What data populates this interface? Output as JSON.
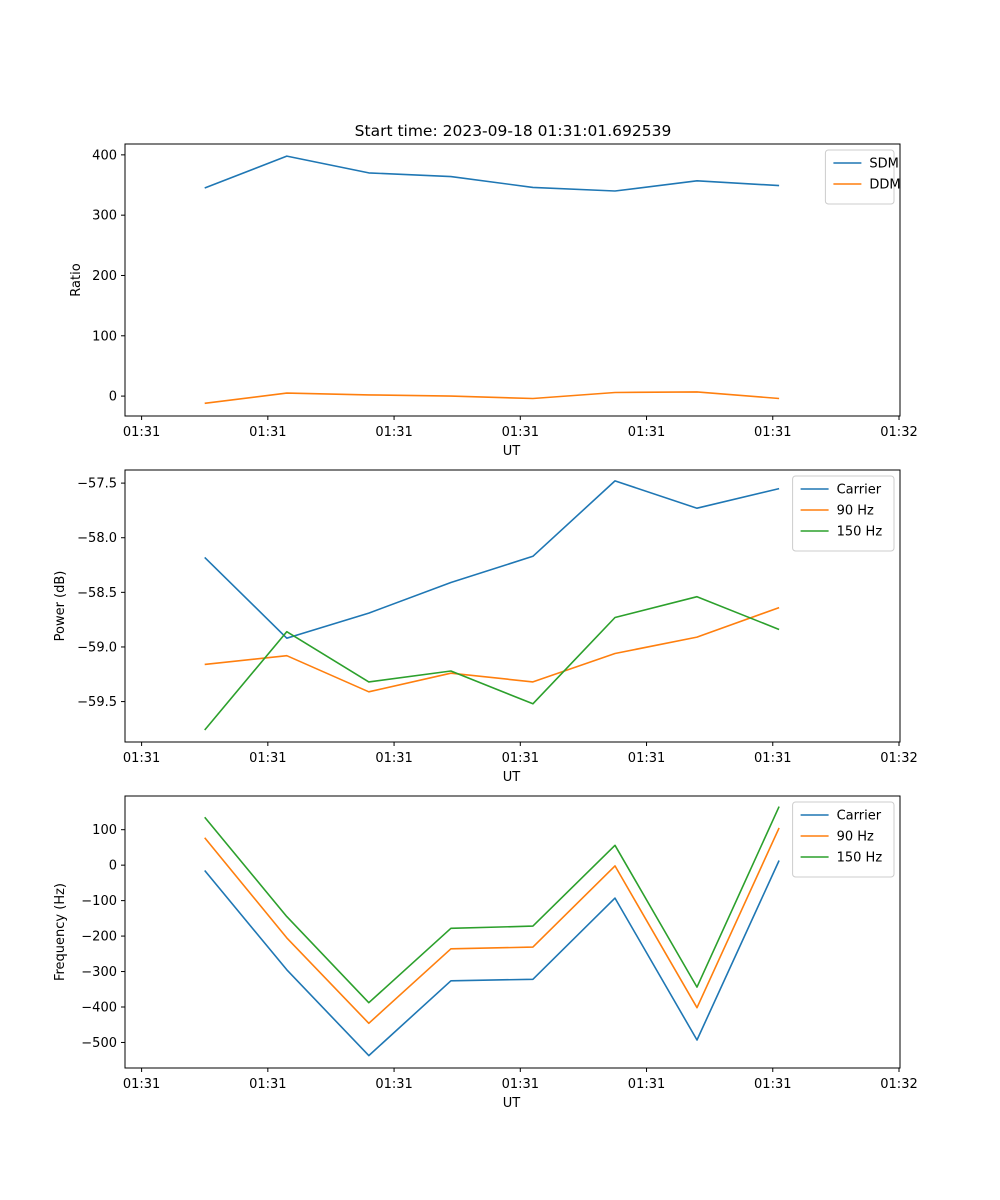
{
  "figure": {
    "title": "Start time: 2023-09-18 01:31:01.692539"
  },
  "chart_data": [
    {
      "type": "line",
      "title": "Start time: 2023-09-18 01:31:01.692539",
      "xlabel": "UT",
      "ylabel": "Ratio",
      "xtick_labels": [
        "01:31",
        "01:31",
        "01:31",
        "01:31",
        "01:31",
        "01:31",
        "01:32"
      ],
      "xlim": [
        0,
        6
      ],
      "x": [
        0.5,
        1.15,
        1.8,
        2.45,
        3.1,
        3.75,
        4.4,
        5.05
      ],
      "ylim": [
        -33,
        418
      ],
      "yticks": [
        0,
        100,
        200,
        300,
        400
      ],
      "legend": "top-right",
      "series": [
        {
          "name": "SDM",
          "color": "#1f77b4",
          "values": [
            345,
            398,
            370,
            364,
            346,
            340,
            357,
            349
          ]
        },
        {
          "name": "DDM",
          "color": "#ff7f0e",
          "values": [
            -12,
            5,
            2,
            0,
            -4,
            6,
            7,
            -4
          ]
        }
      ]
    },
    {
      "type": "line",
      "title": "",
      "xlabel": "UT",
      "ylabel": "Power (dB)",
      "xtick_labels": [
        "01:31",
        "01:31",
        "01:31",
        "01:31",
        "01:31",
        "01:31",
        "01:32"
      ],
      "xlim": [
        0,
        6
      ],
      "x": [
        0.5,
        1.15,
        1.8,
        2.45,
        3.1,
        3.75,
        4.4,
        5.05
      ],
      "ylim": [
        -59.87,
        -57.38
      ],
      "yticks": [
        -59.5,
        -59.0,
        -58.5,
        -58.0,
        -57.5
      ],
      "ytick_labels": [
        "−59.5",
        "−59.0",
        "−58.5",
        "−58.0",
        "−57.5"
      ],
      "legend": "top-right",
      "series": [
        {
          "name": "Carrier",
          "color": "#1f77b4",
          "values": [
            -58.18,
            -58.92,
            -58.69,
            -58.41,
            -58.17,
            -57.48,
            -57.73,
            -57.55
          ]
        },
        {
          "name": "90 Hz",
          "color": "#ff7f0e",
          "values": [
            -59.16,
            -59.08,
            -59.41,
            -59.24,
            -59.32,
            -59.06,
            -58.91,
            -58.64
          ]
        },
        {
          "name": "150 Hz",
          "color": "#2ca02c",
          "values": [
            -59.76,
            -58.86,
            -59.32,
            -59.22,
            -59.52,
            -58.73,
            -58.54,
            -58.84
          ]
        }
      ]
    },
    {
      "type": "line",
      "title": "",
      "xlabel": "UT",
      "ylabel": "Frequency (Hz)",
      "xtick_labels": [
        "01:31",
        "01:31",
        "01:31",
        "01:31",
        "01:31",
        "01:31",
        "01:32"
      ],
      "xlim": [
        0,
        6
      ],
      "x": [
        0.5,
        1.15,
        1.8,
        2.45,
        3.1,
        3.75,
        4.4,
        5.05
      ],
      "ylim": [
        -572,
        195
      ],
      "yticks": [
        -500,
        -400,
        -300,
        -200,
        -100,
        0,
        100
      ],
      "ytick_labels": [
        "−500",
        "−400",
        "−300",
        "−200",
        "−100",
        "0",
        "100"
      ],
      "legend": "top-right",
      "series": [
        {
          "name": "Carrier",
          "color": "#1f77b4",
          "values": [
            -15,
            -295,
            -537,
            -326,
            -322,
            -93,
            -493,
            13
          ]
        },
        {
          "name": "90 Hz",
          "color": "#ff7f0e",
          "values": [
            77,
            -205,
            -446,
            -236,
            -231,
            -2,
            -402,
            105
          ]
        },
        {
          "name": "150 Hz",
          "color": "#2ca02c",
          "values": [
            135,
            -145,
            -388,
            -178,
            -172,
            56,
            -344,
            165
          ]
        }
      ]
    }
  ]
}
